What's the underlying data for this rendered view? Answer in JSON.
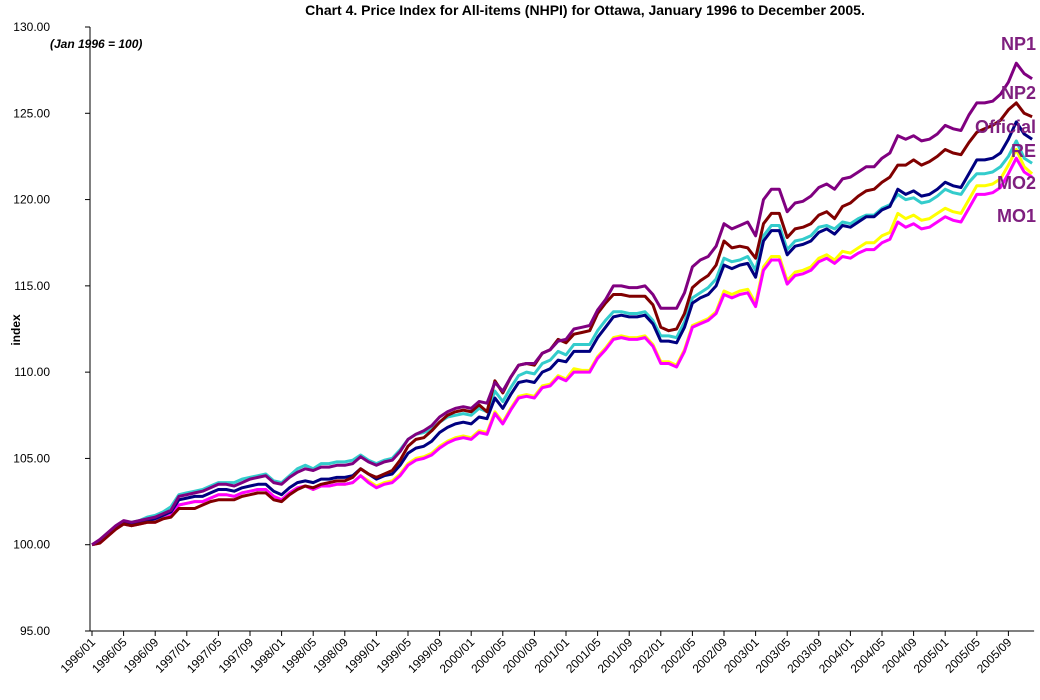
{
  "chart_data": {
    "type": "line",
    "title": "Chart 4. Price Index for All-items (NHPI) for Ottawa, January 1996 to December 2005.",
    "subtitle": "(Jan 1996 = 100)",
    "y_label": "index",
    "ylim": [
      95,
      130
    ],
    "yticks": [
      {
        "value": 95,
        "label": "95.00"
      },
      {
        "value": 100,
        "label": "100.00"
      },
      {
        "value": 105,
        "label": "105.00"
      },
      {
        "value": 110,
        "label": "110.00"
      },
      {
        "value": 115,
        "label": "115.00"
      },
      {
        "value": 120,
        "label": "120.00"
      },
      {
        "value": 125,
        "label": "125.00"
      },
      {
        "value": 130,
        "label": "130.00"
      }
    ],
    "grid": false,
    "categories": [
      "1996/01",
      null,
      null,
      null,
      "1996/05",
      null,
      null,
      null,
      "1996/09",
      null,
      null,
      null,
      "1997/01",
      null,
      null,
      null,
      "1997/05",
      null,
      null,
      null,
      "1997/09",
      null,
      null,
      null,
      "1998/01",
      null,
      null,
      null,
      "1998/05",
      null,
      null,
      null,
      "1998/09",
      null,
      null,
      null,
      "1999/01",
      null,
      null,
      null,
      "1999/05",
      null,
      null,
      null,
      "1999/09",
      null,
      null,
      null,
      "2000/01",
      null,
      null,
      null,
      "2000/05",
      null,
      null,
      null,
      "2000/09",
      null,
      null,
      null,
      "2001/01",
      null,
      null,
      null,
      "2001/05",
      null,
      null,
      null,
      "2001/09",
      null,
      null,
      null,
      "2002/01",
      null,
      null,
      null,
      "2002/05",
      null,
      null,
      null,
      "2002/09",
      null,
      null,
      null,
      "2003/01",
      null,
      null,
      null,
      "2003/05",
      null,
      null,
      null,
      "2003/09",
      null,
      null,
      null,
      "2004/01",
      null,
      null,
      null,
      "2004/05",
      null,
      null,
      null,
      "2004/09",
      null,
      null,
      null,
      "2005/01",
      null,
      null,
      null,
      "2005/05",
      null,
      null,
      null,
      "2005/09",
      null,
      null,
      null
    ],
    "series": [
      {
        "name": "MO2",
        "color": "#ffff00",
        "values": [
          100.0,
          100.1,
          100.5,
          100.9,
          101.2,
          101.1,
          101.2,
          101.3,
          101.3,
          101.5,
          101.7,
          102.3,
          102.4,
          102.5,
          102.5,
          102.7,
          102.9,
          102.9,
          102.8,
          103.0,
          103.1,
          103.2,
          103.2,
          102.8,
          102.6,
          103.0,
          103.3,
          103.4,
          103.2,
          103.4,
          103.4,
          103.5,
          103.5,
          103.6,
          104.0,
          103.7,
          103.4,
          103.6,
          103.7,
          104.1,
          104.7,
          105.0,
          105.1,
          105.3,
          105.7,
          106.0,
          106.2,
          106.3,
          106.2,
          106.6,
          106.5,
          107.7,
          107.1,
          107.9,
          108.6,
          108.7,
          108.6,
          109.2,
          109.3,
          109.8,
          109.6,
          110.2,
          110.1,
          110.1,
          110.9,
          111.4,
          112.0,
          112.1,
          112.0,
          112.0,
          112.1,
          111.6,
          110.6,
          110.6,
          110.4,
          111.3,
          112.7,
          112.9,
          113.1,
          113.5,
          114.7,
          114.5,
          114.7,
          114.8,
          114.0,
          116.1,
          116.7,
          116.7,
          115.3,
          115.8,
          115.9,
          116.1,
          116.6,
          116.8,
          116.5,
          117.0,
          116.9,
          117.2,
          117.5,
          117.5,
          117.9,
          118.1,
          119.2,
          118.9,
          119.1,
          118.8,
          118.9,
          119.2,
          119.5,
          119.3,
          119.2,
          120.0,
          120.8,
          120.8,
          120.9,
          121.2,
          122.0,
          122.9,
          121.9,
          121.5
        ]
      },
      {
        "name": "MO1",
        "color": "#ff00ff",
        "values": [
          100.0,
          100.1,
          100.5,
          100.9,
          101.2,
          101.1,
          101.2,
          101.3,
          101.3,
          101.5,
          101.7,
          102.3,
          102.4,
          102.5,
          102.5,
          102.7,
          102.9,
          102.9,
          102.8,
          103.0,
          103.1,
          103.2,
          103.2,
          102.8,
          102.6,
          103.0,
          103.3,
          103.4,
          103.2,
          103.4,
          103.4,
          103.5,
          103.5,
          103.6,
          104.0,
          103.6,
          103.3,
          103.5,
          103.6,
          104.0,
          104.6,
          104.9,
          105.0,
          105.2,
          105.6,
          105.9,
          106.1,
          106.2,
          106.1,
          106.5,
          106.4,
          107.6,
          107.0,
          107.8,
          108.5,
          108.6,
          108.5,
          109.1,
          109.2,
          109.7,
          109.5,
          110.0,
          110.0,
          110.0,
          110.8,
          111.3,
          111.9,
          112.0,
          111.9,
          111.9,
          112.0,
          111.5,
          110.5,
          110.5,
          110.3,
          111.2,
          112.6,
          112.8,
          113.0,
          113.4,
          114.5,
          114.3,
          114.5,
          114.6,
          113.8,
          115.9,
          116.5,
          116.5,
          115.1,
          115.6,
          115.7,
          115.9,
          116.4,
          116.6,
          116.3,
          116.7,
          116.6,
          116.9,
          117.1,
          117.1,
          117.5,
          117.7,
          118.7,
          118.4,
          118.6,
          118.3,
          118.4,
          118.7,
          119.0,
          118.8,
          118.7,
          119.5,
          120.3,
          120.3,
          120.4,
          120.7,
          121.5,
          122.4,
          121.6,
          121.3
        ]
      },
      {
        "name": "RE",
        "color": "#33cccc",
        "values": [
          100.0,
          100.2,
          100.6,
          101.0,
          101.3,
          101.3,
          101.4,
          101.6,
          101.7,
          101.9,
          102.2,
          102.9,
          103.0,
          103.1,
          103.2,
          103.4,
          103.6,
          103.6,
          103.6,
          103.8,
          103.9,
          104.0,
          104.1,
          103.7,
          103.6,
          104.0,
          104.4,
          104.6,
          104.4,
          104.7,
          104.7,
          104.8,
          104.8,
          104.9,
          105.2,
          104.9,
          104.7,
          104.9,
          105.0,
          105.5,
          106.1,
          106.4,
          106.5,
          106.7,
          107.1,
          107.4,
          107.5,
          107.6,
          107.5,
          107.9,
          107.7,
          108.9,
          108.3,
          109.1,
          109.8,
          110.0,
          109.9,
          110.5,
          110.7,
          111.2,
          111.0,
          111.6,
          111.6,
          111.6,
          112.4,
          113.0,
          113.5,
          113.5,
          113.4,
          113.4,
          113.5,
          113.0,
          112.1,
          112.1,
          112.0,
          112.9,
          114.3,
          114.6,
          114.9,
          115.4,
          116.6,
          116.4,
          116.5,
          116.7,
          115.9,
          117.9,
          118.5,
          118.5,
          117.1,
          117.6,
          117.7,
          117.9,
          118.4,
          118.5,
          118.3,
          118.7,
          118.6,
          118.9,
          119.1,
          119.1,
          119.5,
          119.7,
          120.3,
          120.0,
          120.1,
          119.8,
          119.9,
          120.2,
          120.6,
          120.4,
          120.3,
          121.0,
          121.5,
          121.5,
          121.6,
          121.9,
          122.5,
          123.4,
          122.4,
          122.1
        ]
      },
      {
        "name": "Official",
        "color": "#000080",
        "values": [
          100.0,
          100.2,
          100.6,
          101.0,
          101.3,
          101.2,
          101.3,
          101.4,
          101.5,
          101.7,
          101.9,
          102.6,
          102.7,
          102.8,
          102.8,
          103.0,
          103.2,
          103.2,
          103.1,
          103.3,
          103.4,
          103.5,
          103.5,
          103.1,
          102.9,
          103.3,
          103.6,
          103.7,
          103.6,
          103.8,
          103.8,
          103.9,
          103.9,
          104.0,
          104.4,
          104.1,
          103.8,
          104.0,
          104.1,
          104.6,
          105.3,
          105.6,
          105.7,
          106.0,
          106.5,
          106.8,
          107.0,
          107.1,
          107.0,
          107.4,
          107.3,
          108.5,
          107.9,
          108.7,
          109.4,
          109.5,
          109.4,
          110.0,
          110.2,
          110.7,
          110.6,
          111.2,
          111.2,
          111.2,
          112.0,
          112.6,
          113.2,
          113.3,
          113.2,
          113.2,
          113.3,
          112.8,
          111.8,
          111.8,
          111.7,
          112.6,
          114.0,
          114.3,
          114.5,
          115.0,
          116.2,
          116.0,
          116.2,
          116.3,
          115.5,
          117.6,
          118.2,
          118.2,
          116.8,
          117.3,
          117.4,
          117.6,
          118.1,
          118.3,
          118.0,
          118.5,
          118.4,
          118.7,
          119.0,
          119.0,
          119.4,
          119.6,
          120.6,
          120.3,
          120.5,
          120.2,
          120.3,
          120.6,
          121.0,
          120.8,
          120.7,
          121.5,
          122.3,
          122.3,
          122.4,
          122.7,
          123.5,
          124.5,
          123.8,
          123.5
        ]
      },
      {
        "name": "NP2",
        "color": "#800000",
        "values": [
          100.0,
          100.1,
          100.5,
          100.9,
          101.2,
          101.1,
          101.2,
          101.3,
          101.3,
          101.5,
          101.6,
          102.1,
          102.1,
          102.1,
          102.3,
          102.5,
          102.6,
          102.6,
          102.6,
          102.8,
          102.9,
          103.0,
          103.0,
          102.6,
          102.5,
          102.9,
          103.2,
          103.4,
          103.3,
          103.5,
          103.6,
          103.7,
          103.7,
          103.9,
          104.4,
          104.1,
          103.9,
          104.1,
          104.3,
          104.9,
          105.7,
          106.1,
          106.2,
          106.6,
          107.1,
          107.5,
          107.7,
          107.8,
          107.7,
          108.1,
          107.7,
          109.5,
          108.8,
          109.7,
          110.4,
          110.5,
          110.4,
          111.1,
          111.3,
          111.9,
          111.7,
          112.2,
          112.3,
          112.4,
          113.4,
          114.0,
          114.5,
          114.5,
          114.4,
          114.4,
          114.4,
          113.9,
          112.6,
          112.4,
          112.5,
          113.4,
          114.9,
          115.3,
          115.6,
          116.2,
          117.6,
          117.2,
          117.3,
          117.2,
          116.6,
          118.6,
          119.2,
          119.2,
          117.8,
          118.3,
          118.4,
          118.6,
          119.1,
          119.3,
          118.9,
          119.6,
          119.8,
          120.2,
          120.5,
          120.6,
          121.0,
          121.3,
          122.0,
          122.0,
          122.3,
          122.0,
          122.2,
          122.5,
          122.9,
          122.7,
          122.6,
          123.3,
          123.9,
          124.1,
          124.3,
          124.6,
          125.2,
          125.6,
          125.0,
          124.8
        ]
      },
      {
        "name": "NP1",
        "color": "#800080",
        "values": [
          100.0,
          100.3,
          100.7,
          101.1,
          101.4,
          101.3,
          101.4,
          101.5,
          101.6,
          101.8,
          102.0,
          102.8,
          102.9,
          103.0,
          103.1,
          103.3,
          103.5,
          103.5,
          103.4,
          103.6,
          103.8,
          103.9,
          104.0,
          103.6,
          103.5,
          103.9,
          104.2,
          104.4,
          104.3,
          104.5,
          104.5,
          104.6,
          104.6,
          104.7,
          105.1,
          104.8,
          104.6,
          104.8,
          104.9,
          105.4,
          106.1,
          106.4,
          106.6,
          106.9,
          107.4,
          107.7,
          107.9,
          108.0,
          107.9,
          108.3,
          108.2,
          109.4,
          108.9,
          109.7,
          110.4,
          110.5,
          110.5,
          111.1,
          111.3,
          111.8,
          111.9,
          112.5,
          112.6,
          112.7,
          113.6,
          114.2,
          115.0,
          115.0,
          114.9,
          114.9,
          115.0,
          114.5,
          113.7,
          113.7,
          113.7,
          114.6,
          116.1,
          116.5,
          116.7,
          117.3,
          118.6,
          118.3,
          118.5,
          118.7,
          117.9,
          120.0,
          120.6,
          120.6,
          119.3,
          119.8,
          119.9,
          120.2,
          120.7,
          120.9,
          120.6,
          121.2,
          121.3,
          121.6,
          121.9,
          121.9,
          122.4,
          122.7,
          123.7,
          123.5,
          123.7,
          123.4,
          123.5,
          123.8,
          124.3,
          124.1,
          124.0,
          124.9,
          125.6,
          125.6,
          125.7,
          126.1,
          126.8,
          127.9,
          127.3,
          127.0
        ]
      }
    ]
  }
}
